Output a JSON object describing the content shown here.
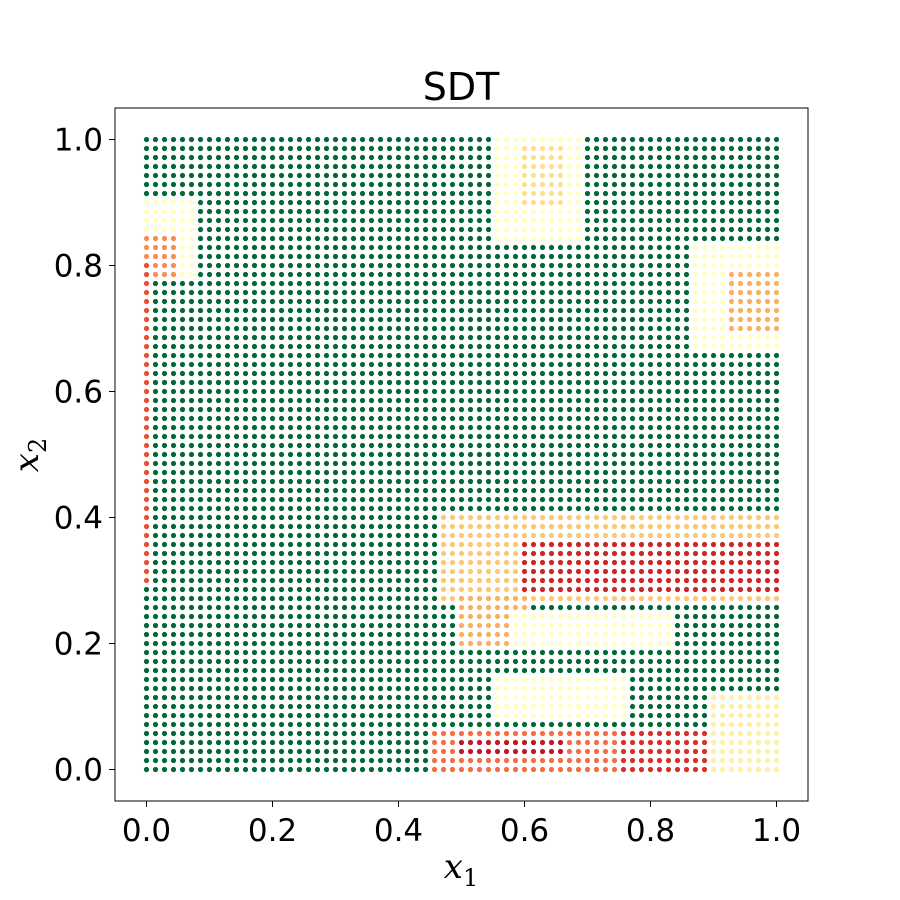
{
  "chart_data": {
    "type": "scatter",
    "title": "SDT",
    "xlabel": "x",
    "xlabel_sub": "1",
    "ylabel": "x",
    "ylabel_sub": "2",
    "xlim": [
      -0.05,
      1.05
    ],
    "ylim": [
      -0.05,
      1.05
    ],
    "xticks": [
      0.0,
      0.2,
      0.4,
      0.6,
      0.8,
      1.0
    ],
    "xtick_labels": [
      "0.0",
      "0.2",
      "0.4",
      "0.6",
      "0.8",
      "1.0"
    ],
    "yticks": [
      0.0,
      0.2,
      0.4,
      0.6,
      0.8,
      1.0
    ],
    "ytick_labels": [
      "0.0",
      "0.2",
      "0.4",
      "0.6",
      "0.8",
      "1.0"
    ],
    "grid": false,
    "colormap": "RdYlGn",
    "point_grid": {
      "x_start": 0.0,
      "x_end": 1.0,
      "y_start": 0.0,
      "y_end": 1.0,
      "count_per_axis": 71
    },
    "value_range": [
      0,
      1
    ],
    "default_value": 1.0,
    "regions": [
      {
        "name": "top-left patch",
        "x": [
          0.0,
          0.08
        ],
        "y": [
          0.78,
          0.9
        ],
        "value": 0.5
      },
      {
        "name": "top-left core",
        "x": [
          0.0,
          0.05
        ],
        "y": [
          0.78,
          0.85
        ],
        "value": 0.25
      },
      {
        "name": "left edge strip",
        "x": [
          0.0,
          0.01
        ],
        "y": [
          0.3,
          0.8
        ],
        "value": 0.15
      },
      {
        "name": "top-middle patch",
        "x": [
          0.55,
          0.69
        ],
        "y": [
          0.83,
          1.0
        ],
        "value": 0.5
      },
      {
        "name": "top-middle core",
        "x": [
          0.6,
          0.67
        ],
        "y": [
          0.9,
          0.99
        ],
        "value": 0.4
      },
      {
        "name": "right upper patch",
        "x": [
          0.87,
          1.0
        ],
        "y": [
          0.66,
          0.83
        ],
        "value": 0.5
      },
      {
        "name": "right upper core",
        "x": [
          0.92,
          1.0
        ],
        "y": [
          0.7,
          0.79
        ],
        "value": 0.3
      },
      {
        "name": "middle-right band",
        "x": [
          0.46,
          1.0
        ],
        "y": [
          0.26,
          0.41
        ],
        "value": 0.35
      },
      {
        "name": "middle-right core",
        "x": [
          0.6,
          1.0
        ],
        "y": [
          0.28,
          0.37
        ],
        "value": 0.08
      },
      {
        "name": "band left lobe",
        "x": [
          0.5,
          0.6
        ],
        "y": [
          0.2,
          0.28
        ],
        "value": 0.3
      },
      {
        "name": "light plateau",
        "x": [
          0.58,
          0.83
        ],
        "y": [
          0.19,
          0.25
        ],
        "value": 0.5
      },
      {
        "name": "lower light patch",
        "x": [
          0.55,
          0.76
        ],
        "y": [
          0.08,
          0.15
        ],
        "value": 0.5
      },
      {
        "name": "bottom light strip",
        "x": [
          0.63,
          1.0
        ],
        "y": [
          0.0,
          0.07
        ],
        "value": 0.5
      },
      {
        "name": "bottom band",
        "x": [
          0.45,
          0.97
        ],
        "y": [
          0.0,
          0.06
        ],
        "value": 0.2
      },
      {
        "name": "bottom core",
        "x": [
          0.5,
          0.66
        ],
        "y": [
          0.02,
          0.05
        ],
        "value": 0.05
      },
      {
        "name": "bottom right core",
        "x": [
          0.75,
          0.9
        ],
        "y": [
          0.0,
          0.07
        ],
        "value": 0.1
      },
      {
        "name": "right edge light",
        "x": [
          0.9,
          1.0
        ],
        "y": [
          0.0,
          0.12
        ],
        "value": 0.45
      }
    ]
  }
}
